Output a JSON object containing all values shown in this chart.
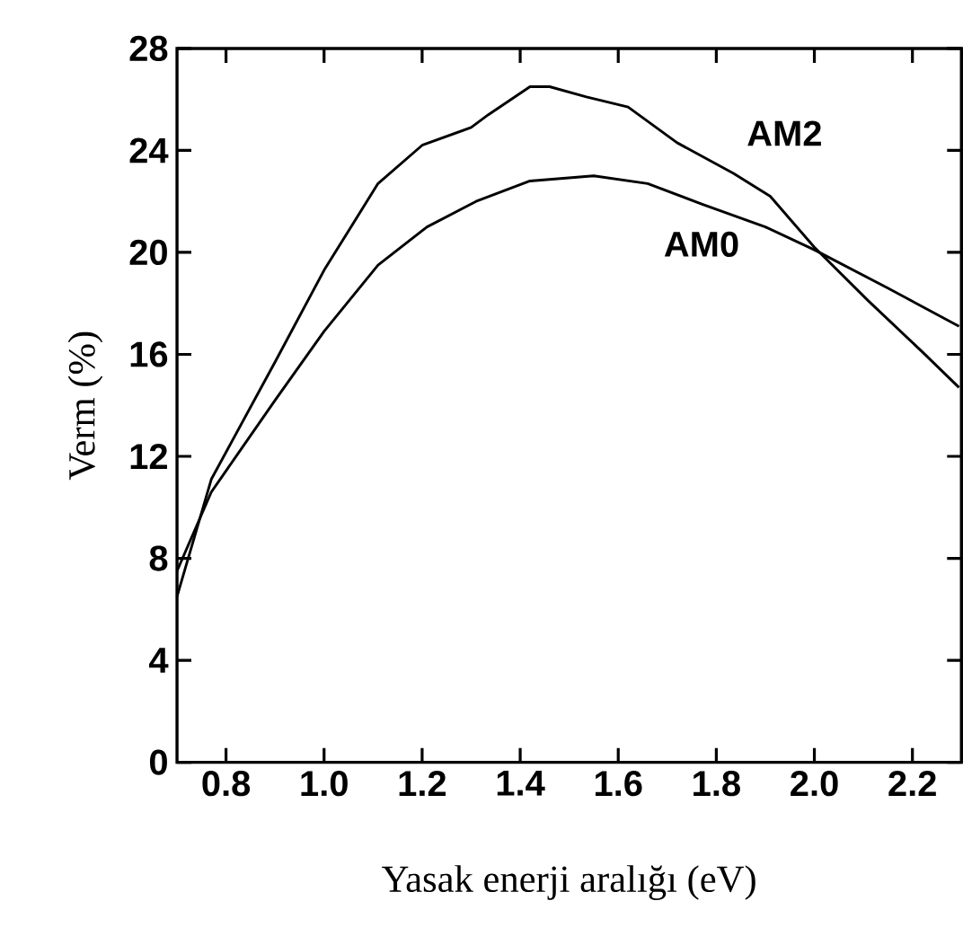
{
  "chart_data": {
    "type": "line",
    "xlabel": "Yasak enerji aralığı (eV)",
    "ylabel": "Verm (%)",
    "xlim": [
      0.7,
      2.3
    ],
    "ylim": [
      0,
      28
    ],
    "xticks": [
      0.8,
      {
        "value": 1.0,
        "label": "1.0"
      },
      1.2,
      1.4,
      1.6,
      1.8,
      {
        "value": 2.0,
        "label": "2.0"
      },
      2.2
    ],
    "yticks": [
      0,
      4,
      8,
      12,
      16,
      20,
      24,
      28
    ],
    "grid": false,
    "legend": false,
    "series": [
      {
        "name": "AM2",
        "color": "#000000",
        "x": [
          0.7,
          0.77,
          0.9,
          1.0,
          1.11,
          1.2,
          1.3,
          1.335,
          1.42,
          1.46,
          1.535,
          1.62,
          1.72,
          1.835,
          1.91,
          2.0,
          2.11,
          2.22,
          2.295
        ],
        "values": [
          6.5,
          11.1,
          15.7,
          19.3,
          22.7,
          24.2,
          24.9,
          25.4,
          26.5,
          26.5,
          26.1,
          25.7,
          24.3,
          23.1,
          22.2,
          20.2,
          18.1,
          16.1,
          14.7
        ]
      },
      {
        "name": "AM0",
        "color": "#000000",
        "x": [
          0.7,
          0.77,
          0.9,
          1.0,
          1.11,
          1.21,
          1.31,
          1.42,
          1.55,
          1.66,
          1.77,
          1.9,
          2.0,
          2.15,
          2.295
        ],
        "values": [
          7.5,
          10.6,
          14.2,
          16.9,
          19.5,
          21.0,
          22.0,
          22.8,
          23.0,
          22.7,
          21.9,
          21.0,
          20.1,
          18.6,
          17.1
        ]
      }
    ]
  }
}
